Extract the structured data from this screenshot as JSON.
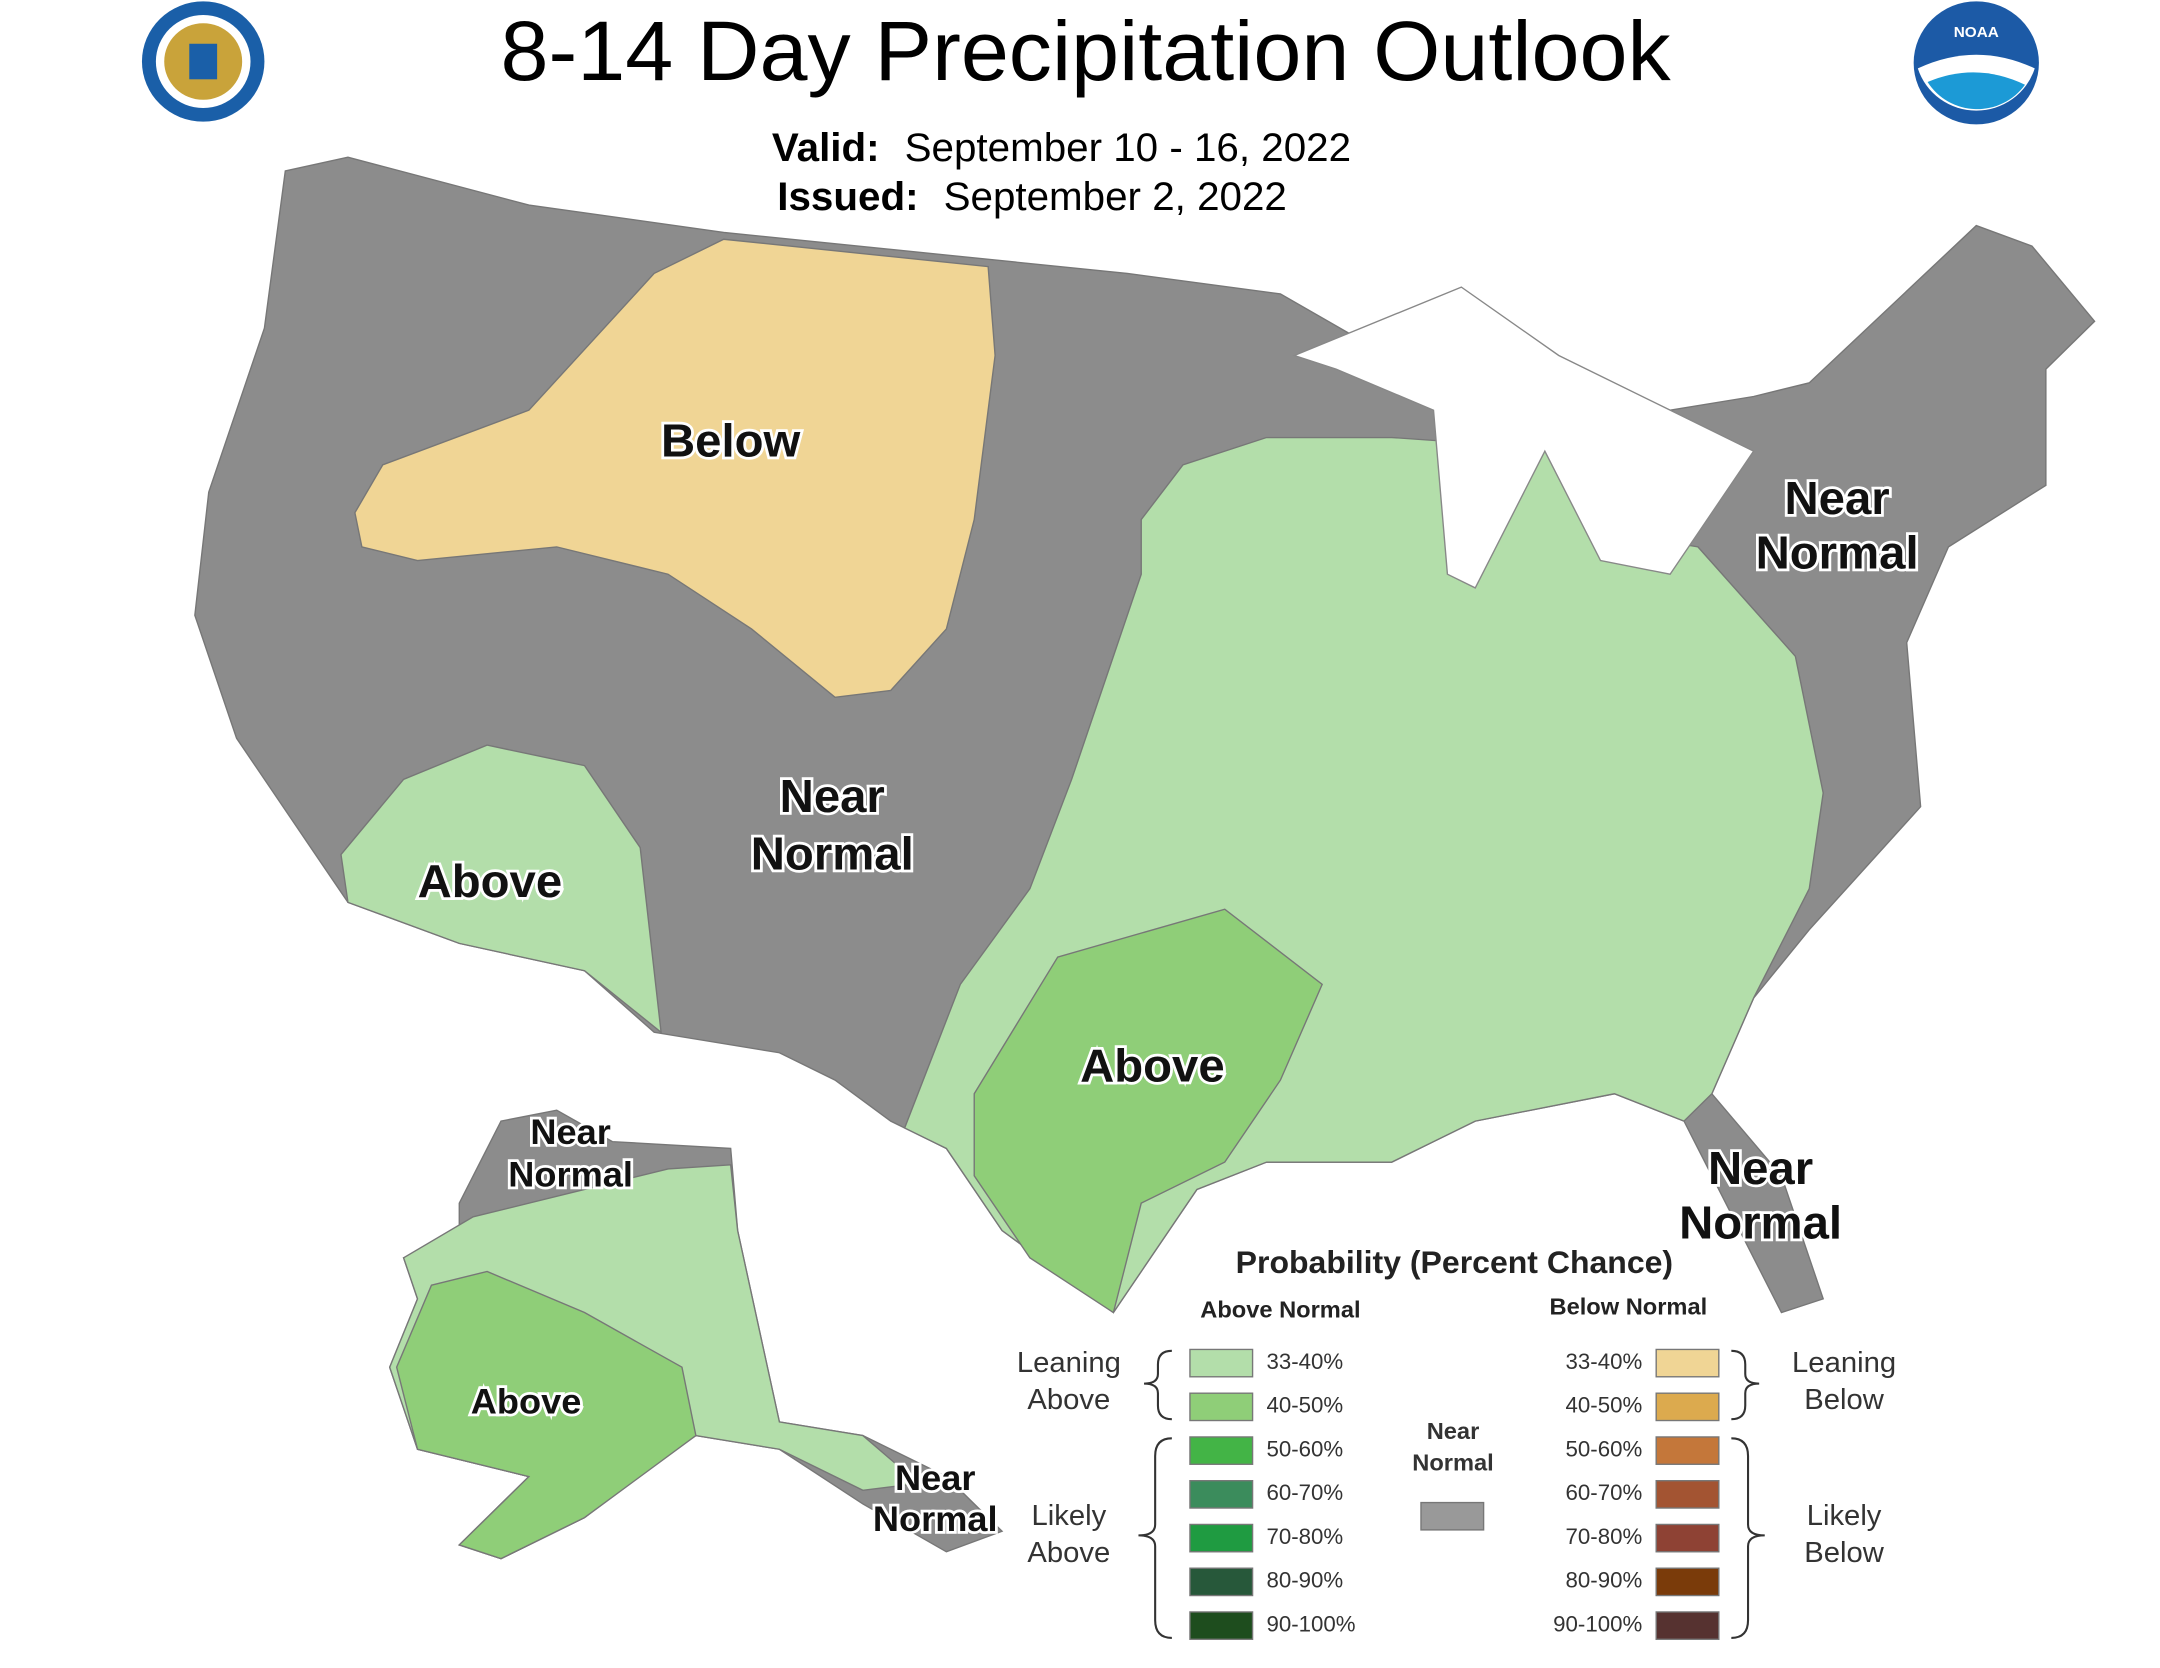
{
  "header": {
    "title": "8-14 Day Precipitation Outlook",
    "valid_label": "Valid:",
    "valid_date": "September 10 - 16, 2022",
    "issued_label": "Issued:",
    "issued_date": "September 2, 2022",
    "noaa_logo_text": "NOAA"
  },
  "map_labels": [
    {
      "lines": [
        "Below"
      ]
    },
    {
      "lines": [
        "Above"
      ]
    },
    {
      "lines": [
        "Near",
        "Normal"
      ]
    },
    {
      "lines": [
        "Above"
      ]
    },
    {
      "lines": [
        "Near",
        "Normal"
      ]
    },
    {
      "lines": [
        "Near",
        "Normal"
      ]
    },
    {
      "lines": [
        "Near",
        "Normal"
      ]
    },
    {
      "lines": [
        "Above"
      ]
    },
    {
      "lines": [
        "Near",
        "Normal"
      ]
    }
  ],
  "legend": {
    "title": "Probability (Percent Chance)",
    "above_header": "Above Normal",
    "below_header": "Below Normal",
    "above_items": [
      {
        "label": "33-40%",
        "color": "#b3deaa"
      },
      {
        "label": "40-50%",
        "color": "#8fce78"
      },
      {
        "label": "50-60%",
        "color": "#43b446"
      },
      {
        "label": "60-70%",
        "color": "#3b8c5c"
      },
      {
        "label": "70-80%",
        "color": "#1f9b41"
      },
      {
        "label": "80-90%",
        "color": "#27583a"
      },
      {
        "label": "90-100%",
        "color": "#1e4d1e"
      }
    ],
    "below_items": [
      {
        "label": "33-40%",
        "color": "#f0d595"
      },
      {
        "label": "40-50%",
        "color": "#dcaa4e"
      },
      {
        "label": "50-60%",
        "color": "#c4773a"
      },
      {
        "label": "60-70%",
        "color": "#a35432"
      },
      {
        "label": "70-80%",
        "color": "#8e4234"
      },
      {
        "label": "80-90%",
        "color": "#7a3b0a"
      },
      {
        "label": "90-100%",
        "color": "#563230"
      }
    ],
    "near_normal": {
      "lines": [
        "Near",
        "Normal"
      ],
      "color": "#999999"
    },
    "leaning_above": [
      "Leaning",
      "Above"
    ],
    "likely_above": [
      "Likely",
      "Above"
    ],
    "leaning_below": [
      "Leaning",
      "Below"
    ],
    "likely_below": [
      "Likely",
      "Below"
    ]
  }
}
